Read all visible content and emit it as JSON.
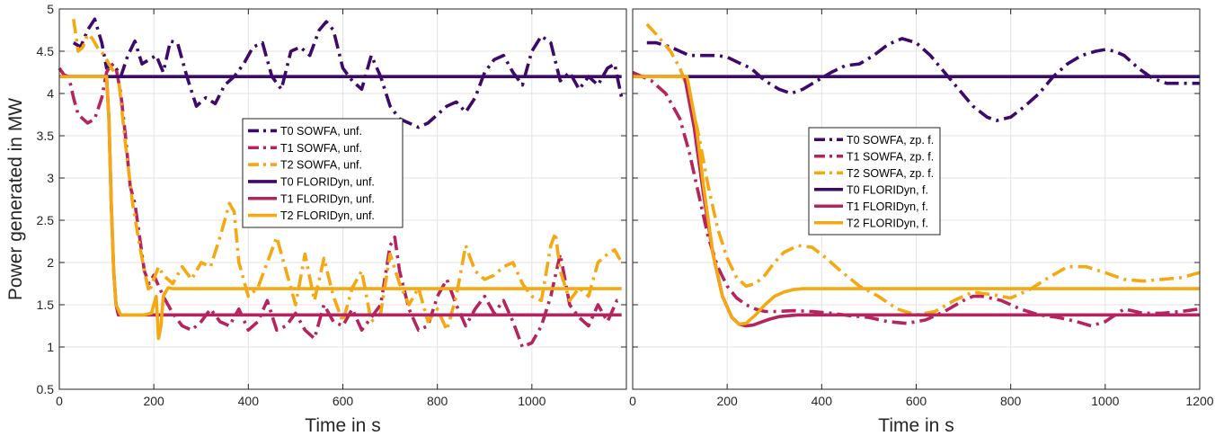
{
  "chart_data": [
    {
      "type": "line",
      "xlabel": "Time in s",
      "ylabel": "Power generated in  MW",
      "xlim": [
        0,
        1200
      ],
      "ylim": [
        0.5,
        5
      ],
      "xticks": [
        "0",
        "200",
        "400",
        "600",
        "800",
        "1000"
      ],
      "yticks": [
        "0.5",
        "1",
        "1.5",
        "2",
        "2.5",
        "3",
        "3.5",
        "4",
        "4.5",
        "5"
      ],
      "grid": true,
      "legend_position": "center",
      "series": [
        {
          "name": "T0 SOWFA, unf.",
          "color": "#3d0a6b",
          "dash": "dashdot",
          "x": [
            30,
            45,
            60,
            75,
            90,
            100,
            115,
            130,
            145,
            160,
            175,
            190,
            205,
            220,
            235,
            250,
            270,
            290,
            310,
            330,
            350,
            370,
            390,
            410,
            430,
            450,
            470,
            490,
            510,
            530,
            550,
            565,
            580,
            600,
            620,
            640,
            660,
            680,
            700,
            720,
            740,
            760,
            780,
            800,
            820,
            840,
            860,
            880,
            900,
            920,
            940,
            960,
            980,
            1000,
            1020,
            1040,
            1060,
            1080,
            1100,
            1120,
            1140,
            1160,
            1175,
            1190
          ],
          "y": [
            4.6,
            4.55,
            4.75,
            4.88,
            4.6,
            4.3,
            4.35,
            4.2,
            4.45,
            4.62,
            4.35,
            4.4,
            4.45,
            4.25,
            4.62,
            4.6,
            4.2,
            3.85,
            3.95,
            3.88,
            4.1,
            4.2,
            4.35,
            4.55,
            4.6,
            4.2,
            4.05,
            4.5,
            4.55,
            4.45,
            4.75,
            4.85,
            4.75,
            4.3,
            4.15,
            4.05,
            4.45,
            4.2,
            3.85,
            3.7,
            3.65,
            3.6,
            3.65,
            3.75,
            3.85,
            3.9,
            3.78,
            3.95,
            4.25,
            4.4,
            4.45,
            4.25,
            4.1,
            4.5,
            4.68,
            4.6,
            4.15,
            4.25,
            4.05,
            4.2,
            4.1,
            4.3,
            4.35,
            3.95
          ]
        },
        {
          "name": "T1 SOWFA, unf.",
          "color": "#b5245e",
          "dash": "dashdot",
          "x": [
            0,
            10,
            20,
            30,
            40,
            50,
            60,
            75,
            90,
            100,
            110,
            120,
            130,
            140,
            150,
            160,
            170,
            180,
            190,
            200,
            220,
            240,
            260,
            280,
            300,
            320,
            340,
            360,
            380,
            400,
            420,
            440,
            460,
            480,
            500,
            520,
            540,
            560,
            580,
            600,
            620,
            640,
            660,
            680,
            700,
            710,
            720,
            740,
            760,
            780,
            800,
            820,
            840,
            860,
            880,
            900,
            920,
            940,
            960,
            980,
            1000,
            1020,
            1040,
            1060,
            1080,
            1100,
            1120,
            1140,
            1160,
            1180,
            1190
          ],
          "y": [
            4.3,
            4.22,
            4.2,
            3.95,
            3.75,
            3.7,
            3.65,
            3.7,
            3.95,
            4.25,
            4.35,
            4.3,
            4.0,
            3.5,
            2.9,
            2.7,
            2.3,
            1.9,
            1.75,
            1.85,
            1.6,
            1.4,
            1.25,
            1.2,
            1.3,
            1.45,
            1.3,
            1.25,
            1.45,
            1.2,
            1.3,
            1.55,
            1.2,
            1.25,
            1.4,
            1.2,
            1.1,
            1.5,
            1.3,
            1.25,
            1.45,
            1.2,
            1.35,
            1.5,
            2.2,
            2.3,
            1.9,
            1.45,
            1.2,
            1.25,
            1.6,
            1.8,
            1.5,
            1.25,
            1.45,
            1.6,
            1.4,
            1.55,
            1.3,
            1.0,
            1.05,
            1.25,
            1.6,
            2.1,
            1.5,
            1.35,
            1.25,
            1.5,
            1.3,
            1.55,
            1.55
          ]
        },
        {
          "name": "T2 SOWFA, unf.",
          "color": "#f5a812",
          "dash": "dashdot",
          "x": [
            30,
            40,
            50,
            60,
            70,
            80,
            95,
            110,
            125,
            140,
            155,
            170,
            180,
            190,
            200,
            210,
            220,
            240,
            260,
            280,
            300,
            320,
            340,
            360,
            370,
            380,
            400,
            420,
            440,
            460,
            480,
            500,
            520,
            540,
            560,
            580,
            600,
            620,
            640,
            660,
            680,
            700,
            720,
            740,
            760,
            780,
            800,
            820,
            840,
            860,
            880,
            900,
            920,
            940,
            960,
            980,
            1000,
            1020,
            1040,
            1050,
            1060,
            1080,
            1100,
            1120,
            1140,
            1160,
            1175,
            1190
          ],
          "y": [
            4.88,
            4.5,
            4.55,
            4.7,
            4.65,
            4.55,
            4.45,
            4.3,
            4.2,
            3.4,
            2.7,
            2.2,
            1.9,
            1.65,
            1.8,
            1.95,
            1.85,
            1.75,
            1.95,
            1.8,
            2.0,
            1.95,
            2.3,
            2.7,
            2.6,
            2.0,
            1.6,
            1.7,
            2.0,
            2.3,
            1.9,
            1.5,
            2.1,
            1.55,
            2.05,
            1.6,
            1.3,
            1.7,
            1.9,
            1.3,
            1.4,
            2.1,
            1.75,
            1.5,
            1.7,
            1.3,
            1.45,
            1.2,
            1.6,
            2.2,
            1.9,
            1.8,
            1.85,
            1.95,
            2.0,
            1.75,
            1.6,
            1.55,
            2.2,
            2.35,
            1.9,
            1.55,
            1.7,
            1.6,
            2.0,
            2.1,
            2.15,
            2.0
          ]
        },
        {
          "name": "T0 FLORIDyn, unf.",
          "color": "#3d0a6b",
          "dash": "solid",
          "x": [
            0,
            1190
          ],
          "y": [
            4.2,
            4.2
          ]
        },
        {
          "name": "T1 FLORIDyn, unf.",
          "color": "#b5245e",
          "dash": "solid",
          "x": [
            0,
            100,
            105,
            110,
            115,
            120,
            125,
            1190
          ],
          "y": [
            4.2,
            4.2,
            3.7,
            2.7,
            1.9,
            1.5,
            1.38,
            1.38
          ]
        },
        {
          "name": "T2 FLORIDyn, unf.",
          "color": "#f5a812",
          "dash": "solid",
          "x": [
            0,
            100,
            105,
            110,
            115,
            120,
            130,
            180,
            195,
            205,
            210,
            215,
            220,
            230,
            240,
            1190
          ],
          "y": [
            4.2,
            4.2,
            3.7,
            2.7,
            1.9,
            1.5,
            1.38,
            1.38,
            1.4,
            1.6,
            1.1,
            1.25,
            1.6,
            1.7,
            1.69,
            1.69
          ]
        }
      ]
    },
    {
      "type": "line",
      "xlabel": "Time in s",
      "ylabel": "",
      "xlim": [
        0,
        1200
      ],
      "ylim": [
        0.5,
        5
      ],
      "xticks": [
        "0",
        "200",
        "400",
        "600",
        "800",
        "1000",
        "1200"
      ],
      "yticks": [],
      "grid": true,
      "legend_position": "center",
      "series": [
        {
          "name": "T0 SOWFA, zp. f.",
          "color": "#3d0a6b",
          "dash": "dashdot",
          "x": [
            30,
            50,
            80,
            100,
            120,
            150,
            180,
            200,
            230,
            250,
            280,
            310,
            335,
            360,
            390,
            420,
            450,
            480,
            510,
            540,
            570,
            600,
            630,
            660,
            690,
            720,
            750,
            770,
            800,
            830,
            860,
            890,
            920,
            950,
            980,
            1000,
            1020,
            1040,
            1070,
            1100,
            1130,
            1160,
            1200
          ],
          "y": [
            4.6,
            4.6,
            4.55,
            4.5,
            4.45,
            4.45,
            4.45,
            4.43,
            4.35,
            4.3,
            4.15,
            4.05,
            4.0,
            4.05,
            4.15,
            4.25,
            4.33,
            4.35,
            4.45,
            4.58,
            4.65,
            4.6,
            4.45,
            4.25,
            4.05,
            3.85,
            3.72,
            3.68,
            3.72,
            3.85,
            4.0,
            4.2,
            4.35,
            4.45,
            4.5,
            4.52,
            4.5,
            4.45,
            4.3,
            4.18,
            4.12,
            4.12,
            4.12
          ]
        },
        {
          "name": "T1 SOWFA, zp. f.",
          "color": "#b5245e",
          "dash": "dashdot",
          "x": [
            0,
            40,
            70,
            100,
            120,
            140,
            160,
            180,
            200,
            220,
            240,
            260,
            280,
            300,
            340,
            380,
            420,
            460,
            500,
            540,
            580,
            620,
            660,
            700,
            720,
            740,
            780,
            820,
            860,
            900,
            940,
            970,
            1000,
            1040,
            1080,
            1120,
            1160,
            1200
          ],
          "y": [
            4.25,
            4.15,
            4.0,
            3.7,
            3.3,
            2.8,
            2.3,
            1.95,
            1.72,
            1.58,
            1.5,
            1.45,
            1.42,
            1.42,
            1.43,
            1.42,
            1.4,
            1.37,
            1.35,
            1.3,
            1.28,
            1.32,
            1.42,
            1.55,
            1.6,
            1.6,
            1.55,
            1.45,
            1.38,
            1.35,
            1.3,
            1.25,
            1.3,
            1.45,
            1.4,
            1.4,
            1.42,
            1.45
          ]
        },
        {
          "name": "T2 SOWFA, zp. f.",
          "color": "#f5a812",
          "dash": "dashdot",
          "x": [
            30,
            50,
            80,
            100,
            120,
            140,
            160,
            180,
            200,
            220,
            240,
            260,
            280,
            300,
            320,
            350,
            380,
            410,
            440,
            480,
            520,
            560,
            600,
            640,
            680,
            720,
            760,
            800,
            840,
            880,
            920,
            960,
            1000,
            1040,
            1080,
            1120,
            1160,
            1200
          ],
          "y": [
            4.82,
            4.7,
            4.5,
            4.3,
            4.0,
            3.5,
            2.9,
            2.4,
            2.05,
            1.82,
            1.72,
            1.75,
            1.85,
            2.0,
            2.12,
            2.2,
            2.18,
            2.05,
            1.9,
            1.72,
            1.6,
            1.45,
            1.38,
            1.42,
            1.55,
            1.65,
            1.62,
            1.58,
            1.68,
            1.82,
            1.95,
            1.95,
            1.88,
            1.8,
            1.78,
            1.8,
            1.82,
            1.88
          ]
        },
        {
          "name": "T0 FLORIDyn, f.",
          "color": "#3d0a6b",
          "dash": "solid",
          "x": [
            0,
            1200
          ],
          "y": [
            4.2,
            4.2
          ]
        },
        {
          "name": "T1 FLORIDyn, f.",
          "color": "#b5245e",
          "dash": "solid",
          "x": [
            0,
            110,
            130,
            150,
            170,
            190,
            210,
            225,
            240,
            255,
            270,
            290,
            310,
            330,
            350,
            380,
            1200
          ],
          "y": [
            4.2,
            4.2,
            3.6,
            2.8,
            2.1,
            1.6,
            1.35,
            1.27,
            1.25,
            1.26,
            1.29,
            1.33,
            1.36,
            1.37,
            1.38,
            1.38,
            1.38
          ]
        },
        {
          "name": "T2 FLORIDyn, f.",
          "color": "#f5a812",
          "dash": "solid",
          "x": [
            0,
            115,
            135,
            150,
            170,
            190,
            210,
            225,
            240,
            260,
            280,
            300,
            320,
            340,
            360,
            390,
            1200
          ],
          "y": [
            4.2,
            4.2,
            3.6,
            2.9,
            2.1,
            1.6,
            1.35,
            1.27,
            1.28,
            1.38,
            1.5,
            1.6,
            1.65,
            1.68,
            1.69,
            1.69,
            1.69
          ]
        }
      ]
    }
  ]
}
